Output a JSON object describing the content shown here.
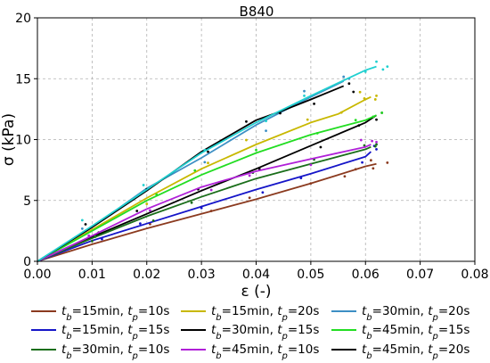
{
  "chart_data": {
    "type": "line",
    "title": "B840",
    "xlabel": "ε (-)",
    "ylabel": "σ (kPa)",
    "xlim": [
      0,
      0.08
    ],
    "ylim": [
      0,
      20
    ],
    "xticks": [
      "0.00",
      "0.01",
      "0.02",
      "0.03",
      "0.04",
      "0.05",
      "0.06",
      "0.07",
      "0.08"
    ],
    "yticks": [
      "0",
      "5",
      "10",
      "15",
      "20"
    ],
    "xtick_values": [
      0,
      0.01,
      0.02,
      0.03,
      0.04,
      0.05,
      0.06,
      0.07,
      0.08
    ],
    "ytick_values": [
      0,
      5,
      10,
      15,
      20
    ],
    "grid": "dashed",
    "legend_position": "below",
    "series": [
      {
        "name": "t_b=15min, t_p=10s",
        "tb": "15min",
        "tp": "10s",
        "color": "#8b3a1f",
        "x": [
          0,
          0.01,
          0.02,
          0.03,
          0.04,
          0.05,
          0.055,
          0.06,
          0.062
        ],
        "y": [
          0,
          1.4,
          2.7,
          3.9,
          5.1,
          6.4,
          7.1,
          7.8,
          8.0
        ],
        "scatter_x": [
          0.064,
          0.061
        ],
        "scatter_y": [
          8.1,
          8.3
        ]
      },
      {
        "name": "t_b=15min, t_p=20s",
        "tb": "15min",
        "tp": "20s",
        "color": "#c8b800",
        "x": [
          0,
          0.01,
          0.02,
          0.03,
          0.04,
          0.05,
          0.055,
          0.06,
          0.061
        ],
        "y": [
          0,
          2.6,
          5.2,
          7.6,
          9.6,
          11.4,
          12.1,
          13.3,
          13.5
        ],
        "scatter_x": [
          0.062,
          0.059
        ],
        "scatter_y": [
          13.6,
          13.9
        ]
      },
      {
        "name": "t_b=30min, t_p=20s",
        "tb": "30min",
        "tp": "20s",
        "color": "#3d8fc4",
        "x": [
          0,
          0.01,
          0.02,
          0.03,
          0.04,
          0.05,
          0.056
        ],
        "y": [
          0,
          2.8,
          6.0,
          8.5,
          11.2,
          13.5,
          14.8
        ],
        "scatter_x": [
          0.057
        ],
        "scatter_y": [
          15.0
        ]
      },
      {
        "name": "t_b=15min, t_p=15s",
        "tb": "15min",
        "tp": "15s",
        "color": "#1515c8",
        "x": [
          0,
          0.01,
          0.02,
          0.03,
          0.04,
          0.05,
          0.06,
          0.061
        ],
        "y": [
          0,
          1.7,
          3.1,
          4.5,
          5.9,
          7.2,
          8.6,
          9.0
        ],
        "scatter_x": [
          0.062
        ],
        "scatter_y": [
          9.2
        ]
      },
      {
        "name": "t_b=30min, t_p=15s",
        "tb": "30min",
        "tp": "15s",
        "color": "#000000",
        "x": [
          0,
          0.01,
          0.02,
          0.03,
          0.04,
          0.05,
          0.06,
          0.062
        ],
        "y": [
          0,
          2.0,
          3.9,
          5.8,
          7.6,
          9.5,
          11.4,
          12.0
        ],
        "scatter_x": [
          0.063
        ],
        "scatter_y": [
          12.2
        ]
      },
      {
        "name": "t_b=45min, t_p=15s",
        "tb": "45min",
        "tp": "15s",
        "color": "#22dd22",
        "x": [
          0,
          0.01,
          0.02,
          0.03,
          0.04,
          0.05,
          0.06,
          0.062
        ],
        "y": [
          0,
          2.5,
          5.0,
          7.1,
          8.9,
          10.4,
          11.6,
          12.0
        ],
        "scatter_x": [
          0.063
        ],
        "scatter_y": [
          12.2
        ]
      },
      {
        "name": "t_b=30min, t_p=10s",
        "tb": "30min",
        "tp": "10s",
        "color": "#1a6e1a",
        "x": [
          0,
          0.01,
          0.02,
          0.03,
          0.04,
          0.05,
          0.06,
          0.061
        ],
        "y": [
          0,
          1.9,
          3.7,
          5.3,
          6.8,
          8.0,
          9.2,
          9.4
        ],
        "scatter_x": [
          0.062
        ],
        "scatter_y": [
          9.6
        ]
      },
      {
        "name": "t_b=45min, t_p=10s",
        "tb": "45min",
        "tp": "10s",
        "color": "#b020d8",
        "x": [
          0,
          0.01,
          0.02,
          0.03,
          0.04,
          0.05,
          0.06,
          0.061
        ],
        "y": [
          0,
          2.1,
          4.3,
          6.1,
          7.4,
          8.4,
          9.4,
          9.6
        ],
        "scatter_x": [
          0.062
        ],
        "scatter_y": [
          9.8
        ]
      },
      {
        "name": "t_b=45min, t_p=20s",
        "tb": "45min",
        "tp": "20s",
        "color": "#000000",
        "x": [
          0,
          0.01,
          0.02,
          0.03,
          0.04,
          0.045,
          0.05,
          0.056
        ],
        "y": [
          0,
          2.8,
          5.8,
          9.0,
          11.6,
          12.4,
          13.3,
          14.4
        ],
        "scatter_x": [
          0.057
        ],
        "scatter_y": [
          14.6
        ]
      },
      {
        "name": "cyan-top",
        "color": "#20d0d0",
        "legend": false,
        "x": [
          0,
          0.01,
          0.02,
          0.03,
          0.04,
          0.05,
          0.06,
          0.062
        ],
        "y": [
          0,
          2.9,
          5.9,
          8.9,
          11.4,
          13.6,
          15.7,
          16.0
        ],
        "scatter_x": [
          0.064,
          0.062
        ],
        "scatter_y": [
          16.0,
          16.4
        ]
      }
    ]
  },
  "legend": [
    {
      "tb": "15min",
      "tp": "10s",
      "color": "#8b3a1f"
    },
    {
      "tb": "15min",
      "tp": "20s",
      "color": "#c8b800"
    },
    {
      "tb": "30min",
      "tp": "20s",
      "color": "#3d8fc4"
    },
    {
      "tb": "15min",
      "tp": "15s",
      "color": "#1515c8"
    },
    {
      "tb": "30min",
      "tp": "15s",
      "color": "#000000"
    },
    {
      "tb": "45min",
      "tp": "15s",
      "color": "#22dd22"
    },
    {
      "tb": "30min",
      "tp": "10s",
      "color": "#1a6e1a"
    },
    {
      "tb": "45min",
      "tp": "10s",
      "color": "#b020d8"
    },
    {
      "tb": "45min",
      "tp": "20s",
      "color": "#000000"
    }
  ]
}
